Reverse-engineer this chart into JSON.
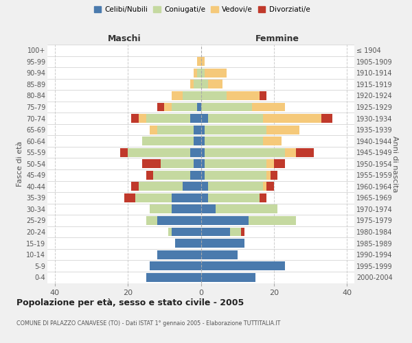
{
  "age_groups": [
    "0-4",
    "5-9",
    "10-14",
    "15-19",
    "20-24",
    "25-29",
    "30-34",
    "35-39",
    "40-44",
    "45-49",
    "50-54",
    "55-59",
    "60-64",
    "65-69",
    "70-74",
    "75-79",
    "80-84",
    "85-89",
    "90-94",
    "95-99",
    "100+"
  ],
  "birth_years": [
    "2000-2004",
    "1995-1999",
    "1990-1994",
    "1985-1989",
    "1980-1984",
    "1975-1979",
    "1970-1974",
    "1965-1969",
    "1960-1964",
    "1955-1959",
    "1950-1954",
    "1945-1949",
    "1940-1944",
    "1935-1939",
    "1930-1934",
    "1925-1929",
    "1920-1924",
    "1915-1919",
    "1910-1914",
    "1905-1909",
    "≤ 1904"
  ],
  "male": {
    "celibi": [
      15,
      14,
      12,
      7,
      8,
      12,
      8,
      8,
      5,
      3,
      2,
      3,
      2,
      2,
      3,
      1,
      0,
      0,
      0,
      0,
      0
    ],
    "coniugati": [
      0,
      0,
      0,
      0,
      1,
      3,
      6,
      10,
      12,
      10,
      9,
      17,
      14,
      10,
      12,
      7,
      5,
      2,
      1,
      0,
      0
    ],
    "vedovi": [
      0,
      0,
      0,
      0,
      0,
      0,
      0,
      0,
      0,
      0,
      0,
      0,
      0,
      2,
      2,
      2,
      3,
      1,
      1,
      1,
      0
    ],
    "divorziati": [
      0,
      0,
      0,
      0,
      0,
      0,
      0,
      3,
      2,
      2,
      5,
      2,
      0,
      0,
      2,
      2,
      0,
      0,
      0,
      0,
      0
    ]
  },
  "female": {
    "nubili": [
      15,
      23,
      10,
      12,
      8,
      13,
      4,
      2,
      2,
      1,
      1,
      1,
      1,
      1,
      2,
      0,
      0,
      0,
      0,
      0,
      0
    ],
    "coniugate": [
      0,
      0,
      0,
      0,
      3,
      13,
      17,
      14,
      15,
      17,
      17,
      22,
      16,
      17,
      15,
      14,
      7,
      2,
      1,
      0,
      0
    ],
    "vedove": [
      0,
      0,
      0,
      0,
      0,
      0,
      0,
      0,
      1,
      1,
      2,
      3,
      5,
      9,
      16,
      9,
      9,
      4,
      6,
      1,
      0
    ],
    "divorziate": [
      0,
      0,
      0,
      0,
      1,
      0,
      0,
      2,
      2,
      2,
      3,
      5,
      0,
      0,
      3,
      0,
      2,
      0,
      0,
      0,
      0
    ]
  },
  "colors": {
    "celibi": "#4a7aad",
    "coniugati": "#c5d9a0",
    "vedovi": "#f5c97a",
    "divorziati": "#c0392b"
  },
  "xlim": 42,
  "title": "Popolazione per età, sesso e stato civile - 2005",
  "subtitle": "COMUNE DI PALAZZO CANAVESE (TO) - Dati ISTAT 1° gennaio 2005 - Elaborazione TUTTITALIA.IT",
  "ylabel_left": "Fasce di età",
  "ylabel_right": "Anni di nascita",
  "header_left": "Maschi",
  "header_right": "Femmine",
  "bg_color": "#f0f0f0",
  "plot_bg": "#ffffff",
  "grid_color": "#cccccc"
}
